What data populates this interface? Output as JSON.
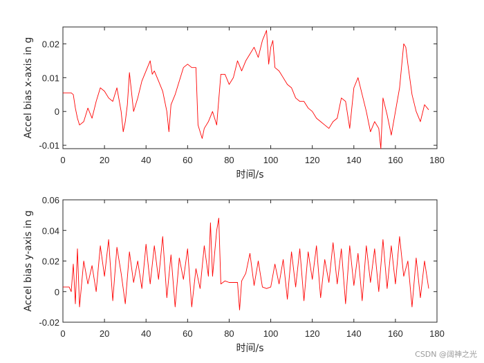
{
  "chart_data": [
    {
      "type": "line",
      "title": "",
      "xlabel": "时间/s",
      "ylabel": "Accel bias x-axis in g",
      "xlim": [
        0,
        180
      ],
      "ylim": [
        -0.011,
        0.025
      ],
      "xticks": [
        0,
        20,
        40,
        60,
        80,
        100,
        120,
        140,
        160,
        180
      ],
      "yticks": [
        -0.01,
        0,
        0.01,
        0.02
      ],
      "xtick_labels": [
        "0",
        "20",
        "40",
        "60",
        "80",
        "100",
        "120",
        "140",
        "160",
        "180"
      ],
      "ytick_labels": [
        "-0.01",
        "0",
        "0.01",
        "0.02"
      ],
      "grid": false,
      "series": [
        {
          "color": "#ff0000",
          "x": [
            0,
            4,
            5,
            6,
            7,
            8,
            10,
            12,
            14,
            16,
            18,
            20,
            22,
            24,
            26,
            28,
            29,
            30,
            31,
            32,
            34,
            36,
            38,
            40,
            42,
            43,
            44,
            46,
            48,
            50,
            51,
            52,
            54,
            56,
            58,
            60,
            62,
            64,
            65,
            66,
            67,
            68,
            69,
            70,
            72,
            74,
            76,
            78,
            80,
            82,
            84,
            86,
            88,
            90,
            92,
            94,
            96,
            98,
            99,
            100,
            101,
            102,
            104,
            106,
            108,
            110,
            112,
            114,
            116,
            118,
            120,
            122,
            124,
            126,
            128,
            130,
            132,
            134,
            136,
            138,
            140,
            142,
            144,
            146,
            148,
            150,
            152,
            153,
            154,
            156,
            158,
            160,
            162,
            164,
            165,
            166,
            168,
            170,
            172,
            174,
            176
          ],
          "y": [
            0.0055,
            0.0055,
            0.005,
            0.001,
            -0.002,
            -0.004,
            -0.003,
            0.001,
            -0.002,
            0.003,
            0.007,
            0.006,
            0.004,
            0.003,
            0.007,
            0.0,
            -0.006,
            -0.003,
            0.002,
            0.0115,
            0.0,
            0.004,
            0.009,
            0.012,
            0.015,
            0.011,
            0.012,
            0.009,
            0.006,
            0.0,
            -0.006,
            0.002,
            0.005,
            0.009,
            0.013,
            0.014,
            0.013,
            0.013,
            -0.004,
            -0.006,
            -0.008,
            -0.005,
            -0.004,
            -0.003,
            0.0,
            -0.004,
            0.011,
            0.011,
            0.008,
            0.01,
            0.015,
            0.012,
            0.015,
            0.017,
            0.019,
            0.016,
            0.021,
            0.024,
            0.014,
            0.019,
            0.021,
            0.013,
            0.012,
            0.01,
            0.008,
            0.007,
            0.004,
            0.003,
            0.003,
            0.001,
            0.0,
            -0.002,
            -0.003,
            -0.004,
            -0.005,
            -0.003,
            -0.002,
            0.004,
            0.003,
            -0.005,
            0.007,
            0.01,
            0.005,
            0.0,
            -0.006,
            -0.003,
            -0.005,
            -0.011,
            0.004,
            -0.001,
            -0.007,
            0.0,
            0.007,
            0.02,
            0.019,
            0.014,
            0.005,
            0.0,
            -0.003,
            0.002,
            0.0005
          ]
        }
      ]
    },
    {
      "type": "line",
      "title": "",
      "xlabel": "时间/s",
      "ylabel": "Accel bias y-axis in g",
      "xlim": [
        0,
        180
      ],
      "ylim": [
        -0.02,
        0.06
      ],
      "xticks": [
        0,
        20,
        40,
        60,
        80,
        100,
        120,
        140,
        160,
        180
      ],
      "yticks": [
        -0.02,
        0,
        0.02,
        0.04,
        0.06
      ],
      "xtick_labels": [
        "0",
        "20",
        "40",
        "60",
        "80",
        "100",
        "120",
        "140",
        "160",
        "180"
      ],
      "ytick_labels": [
        "-0.02",
        "0",
        "0.02",
        "0.04",
        "0.06"
      ],
      "grid": false,
      "series": [
        {
          "color": "#ff0000",
          "x": [
            0,
            3,
            4,
            5,
            6,
            7,
            8,
            10,
            12,
            14,
            16,
            18,
            20,
            22,
            24,
            26,
            28,
            30,
            32,
            34,
            36,
            38,
            40,
            42,
            44,
            46,
            48,
            50,
            52,
            54,
            56,
            58,
            60,
            62,
            64,
            66,
            68,
            70,
            71,
            72,
            74,
            75,
            76,
            78,
            80,
            82,
            84,
            85,
            86,
            88,
            90,
            92,
            94,
            96,
            98,
            100,
            102,
            104,
            106,
            108,
            110,
            112,
            114,
            116,
            118,
            120,
            122,
            124,
            126,
            128,
            130,
            132,
            134,
            136,
            138,
            140,
            142,
            144,
            146,
            148,
            150,
            152,
            154,
            156,
            158,
            160,
            162,
            164,
            166,
            168,
            170,
            172,
            174,
            176
          ],
          "y": [
            0.003,
            0.003,
            0.0,
            0.018,
            -0.008,
            0.028,
            -0.01,
            0.02,
            0.005,
            0.017,
            0.0,
            0.03,
            0.01,
            0.034,
            -0.006,
            0.029,
            0.012,
            -0.008,
            0.026,
            0.006,
            0.02,
            0.002,
            0.031,
            0.005,
            0.03,
            0.008,
            0.036,
            -0.004,
            0.024,
            -0.01,
            0.022,
            0.008,
            0.028,
            -0.01,
            0.015,
            0.002,
            0.03,
            0.01,
            0.045,
            0.01,
            0.04,
            0.048,
            0.005,
            0.007,
            0.006,
            0.006,
            0.006,
            -0.012,
            0.007,
            0.012,
            0.025,
            0.004,
            0.02,
            0.003,
            0.002,
            0.003,
            0.018,
            0.005,
            0.021,
            -0.005,
            0.026,
            0.003,
            0.028,
            -0.006,
            0.026,
            0.008,
            0.03,
            -0.004,
            0.021,
            0.006,
            0.032,
            0.005,
            0.028,
            -0.008,
            0.03,
            0.004,
            0.025,
            -0.006,
            0.03,
            0.006,
            0.028,
            0.0,
            0.034,
            0.002,
            0.03,
            0.005,
            0.036,
            0.01,
            0.02,
            -0.01,
            0.022,
            -0.004,
            0.02,
            0.002
          ]
        }
      ]
    }
  ],
  "watermark": "CSDN @阔神之光"
}
